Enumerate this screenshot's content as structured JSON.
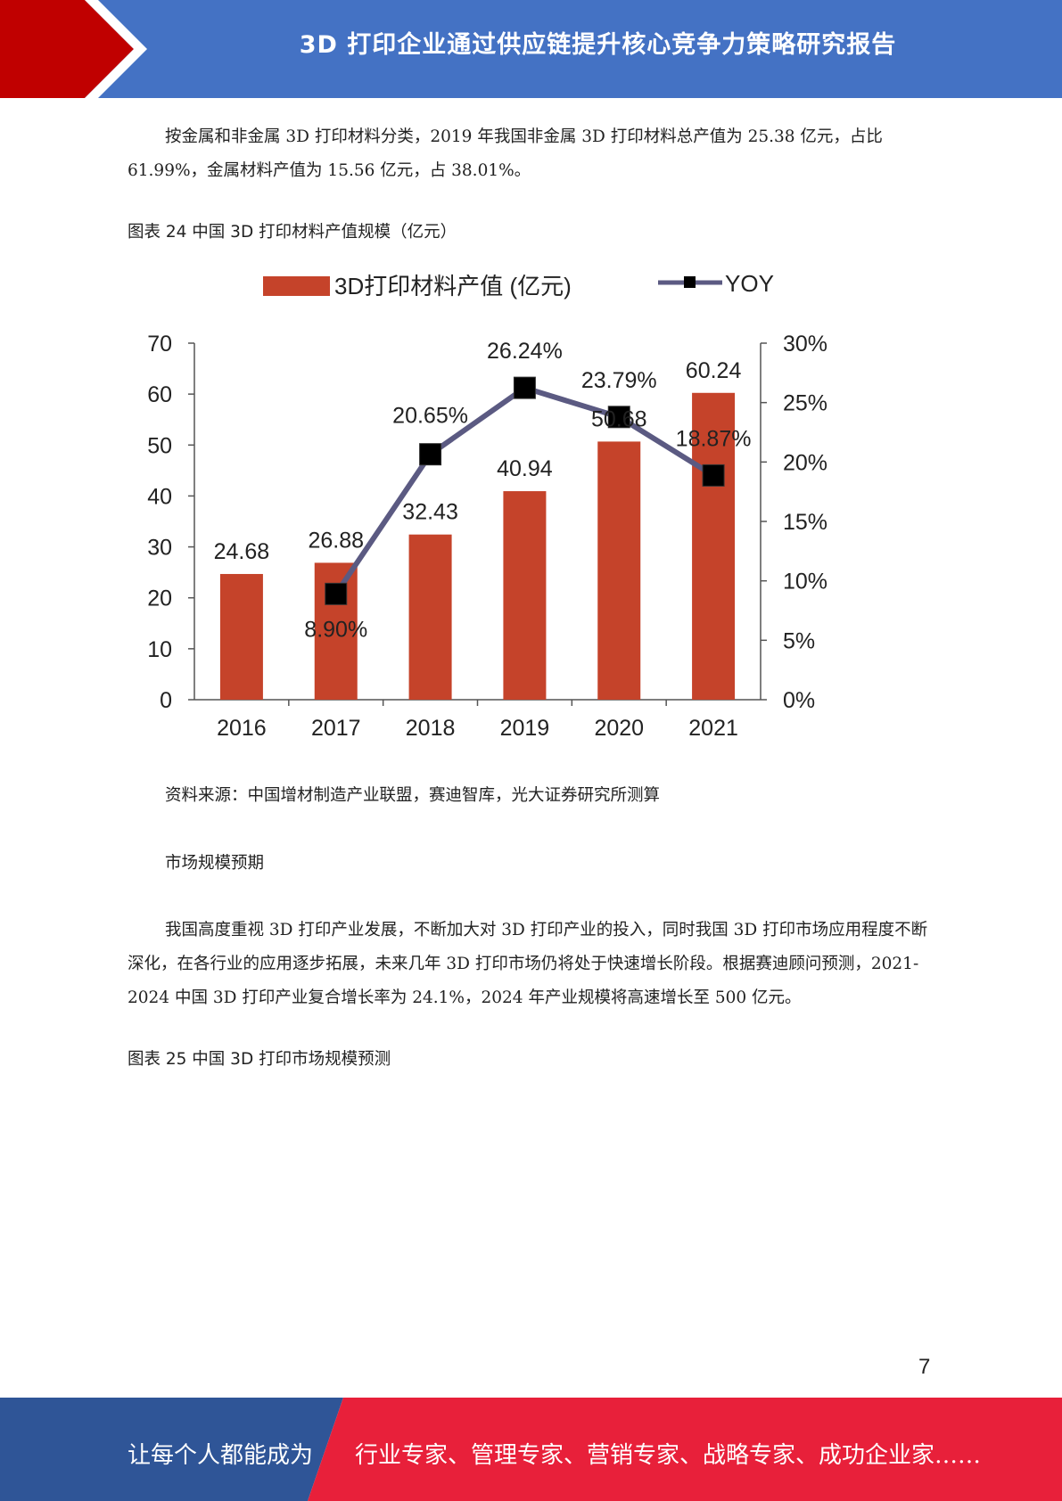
{
  "header": {
    "title": "3D 打印企业通过供应链提升核心竞争力策略研究报告",
    "colors": {
      "bar": "#4472c4",
      "arrow": "#c00000"
    }
  },
  "intro_paragraph": "按金属和非金属 3D 打印材料分类，2019 年我国非金属 3D 打印材料总产值为 25.38 亿元，占比 61.99%，金属材料产值为 15.56 亿元，占 38.01%。",
  "figure24": {
    "caption": "图表  24  中国 3D 打印材料产值规模（亿元）",
    "source": "资料来源：中国增材制造产业联盟，赛迪智库，光大证券研究所测算"
  },
  "chart_data": {
    "type": "bar",
    "categories": [
      "2016",
      "2017",
      "2018",
      "2019",
      "2020",
      "2021"
    ],
    "series": [
      {
        "name": "3D打印材料产值 (亿元)",
        "type": "bar",
        "axis": "left",
        "color": "#c5432a",
        "values": [
          24.68,
          26.88,
          32.43,
          40.94,
          50.68,
          60.24
        ],
        "labels": [
          "24.68",
          "26.88",
          "32.43",
          "40.94",
          "50.68",
          "60.24"
        ]
      },
      {
        "name": "YOY",
        "type": "line",
        "axis": "right",
        "color": "#5b5a82",
        "x": [
          "2017",
          "2018",
          "2019",
          "2020",
          "2021"
        ],
        "values": [
          8.9,
          20.65,
          26.24,
          23.79,
          18.87
        ],
        "labels": [
          "8.90%",
          "20.65%",
          "26.24%",
          "23.79%",
          "18.87%"
        ]
      }
    ],
    "left_axis": {
      "ylim": [
        0,
        70
      ],
      "ticks": [
        "0",
        "10",
        "20",
        "30",
        "40",
        "50",
        "60",
        "70"
      ]
    },
    "right_axis": {
      "ylim": [
        0,
        30
      ],
      "ticks": [
        "0%",
        "5%",
        "10%",
        "15%",
        "20%",
        "25%",
        "30%"
      ]
    },
    "legend_position": "top-center",
    "grid": false
  },
  "subheading": "市场规模预期",
  "market_paragraph": "我国高度重视 3D 打印产业发展，不断加大对 3D 打印产业的投入，同时我国 3D 打印市场应用程度不断深化，在各行业的应用逐步拓展，未来几年 3D 打印市场仍将处于快速增长阶段。根据赛迪顾问预测，2021-2024 中国 3D 打印产业复合增长率为 24.1%，2024 年产业规模将高速增长至 500 亿元。",
  "figure25": {
    "caption": "图表  25  中国 3D 打印市场规模预测"
  },
  "page_number": "7",
  "footer": {
    "left": "让每个人都能成为",
    "right": "行业专家、管理专家、营销专家、战略专家、成功企业家……",
    "colors": {
      "left": "#2f5597",
      "right": "#e8203a"
    }
  }
}
